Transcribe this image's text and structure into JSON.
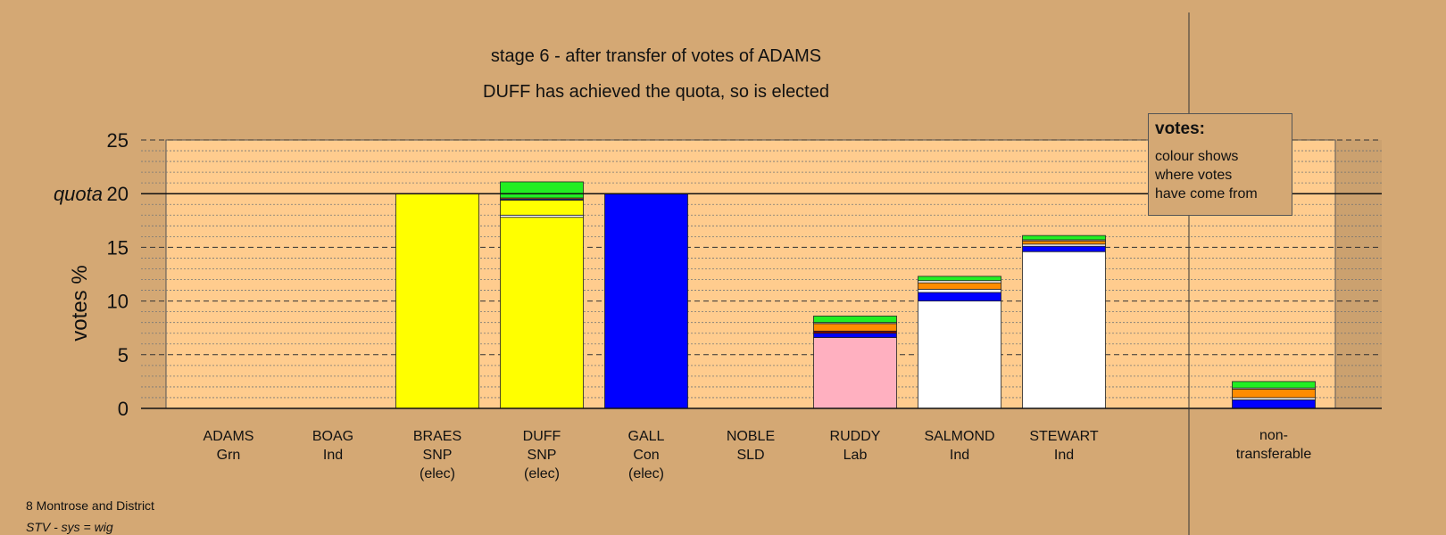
{
  "footer": {
    "line1": "8 Montrose and District",
    "line2": "STV - sys = wig"
  },
  "colors": {
    "background": "#d4a874",
    "plot_area": "#ffcc8e",
    "yellow": "#ffff00",
    "blue": "#0000ff",
    "green": "#22ee22",
    "orange": "#ff8c00",
    "white": "#ffffff",
    "pink": "#ffb0c0",
    "maroon": "#800000"
  },
  "chart_data": {
    "type": "bar",
    "stacked": true,
    "title": "stage 6 - after transfer of votes of ADAMS",
    "subtitle": "DUFF has achieved the quota, so is elected",
    "ylabel": "votes %",
    "ylim": [
      0,
      25
    ],
    "yticks": [
      0,
      5,
      10,
      15,
      20,
      25
    ],
    "quota": 20,
    "quota_label": "quota",
    "grid": true,
    "legend": {
      "title": "votes:",
      "lines": [
        "colour shows",
        "where votes",
        "have come from"
      ]
    },
    "candidates": [
      {
        "name": "ADAMS",
        "party": "Grn",
        "status": "",
        "segments": []
      },
      {
        "name": "BOAG",
        "party": "Ind",
        "status": "",
        "segments": []
      },
      {
        "name": "BRAES",
        "party": "SNP",
        "status": "(elec)",
        "segments": [
          {
            "color": "yellow",
            "value": 20
          }
        ]
      },
      {
        "name": "DUFF",
        "party": "SNP",
        "status": "(elec)",
        "segments": [
          {
            "color": "yellow",
            "value": 17.8
          },
          {
            "color": "white",
            "value": 0.2
          },
          {
            "color": "yellow",
            "value": 1.4
          },
          {
            "color": "blue",
            "value": 0.1
          },
          {
            "color": "orange",
            "value": 0.1
          },
          {
            "color": "green",
            "value": 1.5
          }
        ]
      },
      {
        "name": "GALL",
        "party": "Con",
        "status": "(elec)",
        "segments": [
          {
            "color": "blue",
            "value": 20
          }
        ]
      },
      {
        "name": "NOBLE",
        "party": "SLD",
        "status": "",
        "segments": []
      },
      {
        "name": "RUDDY",
        "party": "Lab",
        "status": "",
        "segments": [
          {
            "color": "pink",
            "value": 6.6
          },
          {
            "color": "blue",
            "value": 0.4
          },
          {
            "color": "maroon",
            "value": 0.2
          },
          {
            "color": "orange",
            "value": 0.7
          },
          {
            "color": "white",
            "value": 0.1
          },
          {
            "color": "green",
            "value": 0.6
          }
        ]
      },
      {
        "name": "SALMOND",
        "party": "Ind",
        "status": "",
        "segments": [
          {
            "color": "white",
            "value": 10.0
          },
          {
            "color": "blue",
            "value": 0.8
          },
          {
            "color": "white",
            "value": 0.3
          },
          {
            "color": "orange",
            "value": 0.6
          },
          {
            "color": "white",
            "value": 0.2
          },
          {
            "color": "green",
            "value": 0.4
          }
        ]
      },
      {
        "name": "STEWART",
        "party": "Ind",
        "status": "",
        "segments": [
          {
            "color": "white",
            "value": 14.6
          },
          {
            "color": "blue",
            "value": 0.5
          },
          {
            "color": "white",
            "value": 0.2
          },
          {
            "color": "orange",
            "value": 0.3
          },
          {
            "color": "white",
            "value": 0.1
          },
          {
            "color": "green",
            "value": 0.4
          }
        ]
      }
    ],
    "nontransferable": {
      "label_lines": [
        "non-",
        "transferable"
      ],
      "segments": [
        {
          "color": "blue",
          "value": 0.8
        },
        {
          "color": "white",
          "value": 0.2
        },
        {
          "color": "orange",
          "value": 0.8
        },
        {
          "color": "white",
          "value": 0.1
        },
        {
          "color": "green",
          "value": 0.6
        }
      ]
    }
  }
}
